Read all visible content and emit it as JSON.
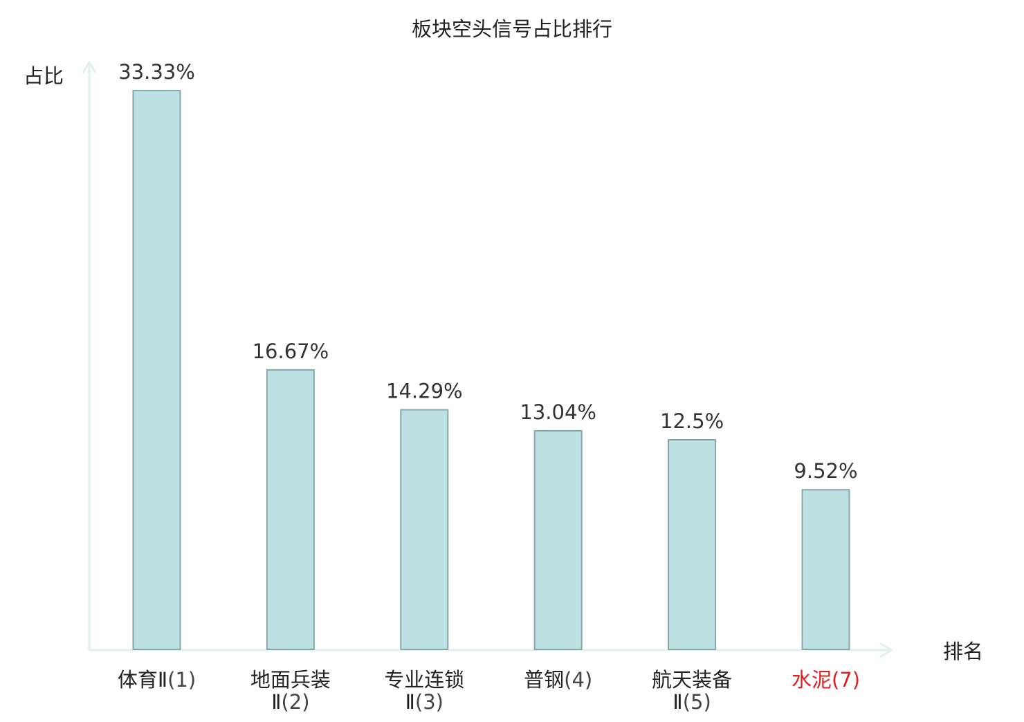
{
  "chart_data": {
    "type": "bar",
    "title": "板块空头信号占比排行",
    "ylabel": "占比",
    "xlabel": "排名",
    "ylim": [
      0,
      35
    ],
    "grid": false,
    "categories": [
      {
        "name_lines": [
          "体育Ⅱ"
        ],
        "rank": "(1)",
        "highlight": false
      },
      {
        "name_lines": [
          "地面兵装",
          "Ⅱ"
        ],
        "rank": "(2)",
        "highlight": false
      },
      {
        "name_lines": [
          "专业连锁",
          "Ⅱ"
        ],
        "rank": "(3)",
        "highlight": false
      },
      {
        "name_lines": [
          "普钢"
        ],
        "rank": "(4)",
        "highlight": false
      },
      {
        "name_lines": [
          "航天装备",
          "Ⅱ"
        ],
        "rank": "(5)",
        "highlight": false
      },
      {
        "name_lines": [
          "水泥"
        ],
        "rank": "(7)",
        "highlight": true
      }
    ],
    "values": [
      33.33,
      16.67,
      14.29,
      13.04,
      12.5,
      9.52
    ],
    "value_labels": [
      "33.33%",
      "16.67%",
      "14.29%",
      "13.04%",
      "12.5%",
      "9.52%"
    ],
    "colors": {
      "bar_fill": "#bde0e3",
      "bar_stroke": "#87a8aa",
      "axis": "#dff1ee",
      "text": "#222222",
      "rank_text": "#444444",
      "value_text": "#333333",
      "highlight": "#e02020"
    }
  }
}
